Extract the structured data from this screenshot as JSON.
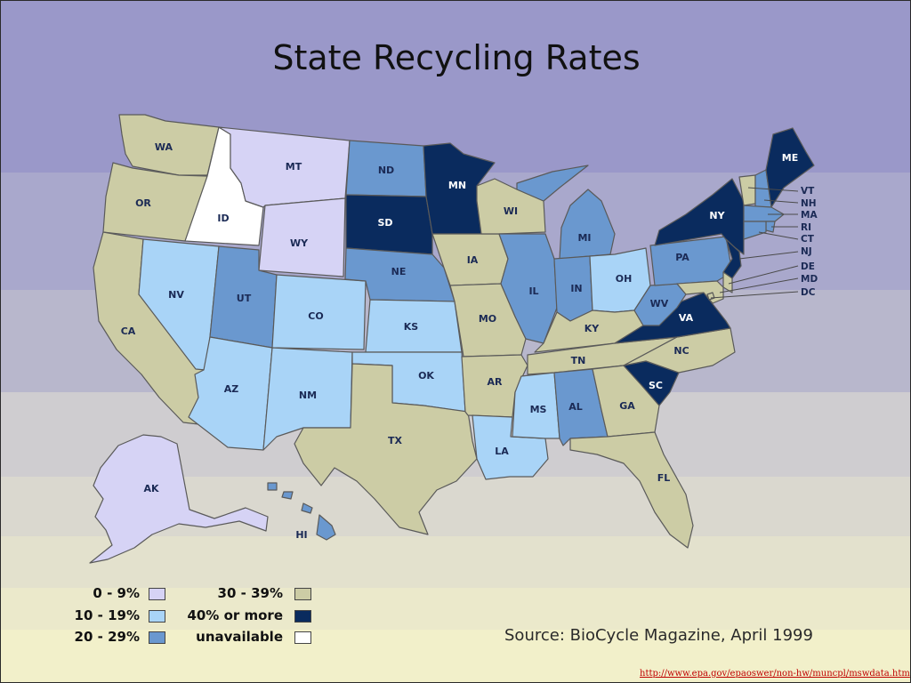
{
  "title": "State Recycling Rates",
  "legend": {
    "items": [
      {
        "label": "0 - 9%",
        "color": "#d6d3f5"
      },
      {
        "label": "10 - 19%",
        "color": "#a9d4f7"
      },
      {
        "label": "20 - 29%",
        "color": "#6a98cf"
      },
      {
        "label": "30 - 39%",
        "color": "#cccca5"
      },
      {
        "label": "40% or more",
        "color": "#0a2b5e"
      },
      {
        "label": "unavailable",
        "color": "#ffffff"
      }
    ]
  },
  "source": "Source: BioCycle Magazine, April 1999",
  "url": "http://www.epa.gov/epaoswer/non-hw/muncpl/mswdata.htm",
  "states": {
    "WA": {
      "label": "WA",
      "category": "30 - 39%"
    },
    "OR": {
      "label": "OR",
      "category": "30 - 39%"
    },
    "CA": {
      "label": "CA",
      "category": "30 - 39%"
    },
    "ID": {
      "label": "ID",
      "category": "unavailable"
    },
    "NV": {
      "label": "NV",
      "category": "10 - 19%"
    },
    "MT": {
      "label": "MT",
      "category": "0 - 9%"
    },
    "WY": {
      "label": "WY",
      "category": "0 - 9%"
    },
    "UT": {
      "label": "UT",
      "category": "20 - 29%"
    },
    "AZ": {
      "label": "AZ",
      "category": "10 - 19%"
    },
    "CO": {
      "label": "CO",
      "category": "10 - 19%"
    },
    "NM": {
      "label": "NM",
      "category": "10 - 19%"
    },
    "ND": {
      "label": "ND",
      "category": "20 - 29%"
    },
    "SD": {
      "label": "SD",
      "category": "40% or more"
    },
    "NE": {
      "label": "NE",
      "category": "20 - 29%"
    },
    "KS": {
      "label": "KS",
      "category": "10 - 19%"
    },
    "OK": {
      "label": "OK",
      "category": "10 - 19%"
    },
    "TX": {
      "label": "TX",
      "category": "30 - 39%"
    },
    "MN": {
      "label": "MN",
      "category": "40% or more"
    },
    "IA": {
      "label": "IA",
      "category": "30 - 39%"
    },
    "MO": {
      "label": "MO",
      "category": "30 - 39%"
    },
    "AR": {
      "label": "AR",
      "category": "30 - 39%"
    },
    "LA": {
      "label": "LA",
      "category": "10 - 19%"
    },
    "WI": {
      "label": "WI",
      "category": "30 - 39%"
    },
    "IL": {
      "label": "IL",
      "category": "20 - 29%"
    },
    "MS": {
      "label": "MS",
      "category": "10 - 19%"
    },
    "MI": {
      "label": "MI",
      "category": "20 - 29%"
    },
    "IN": {
      "label": "IN",
      "category": "20 - 29%"
    },
    "OH": {
      "label": "OH",
      "category": "10 - 19%"
    },
    "KY": {
      "label": "KY",
      "category": "30 - 39%"
    },
    "TN": {
      "label": "TN",
      "category": "30 - 39%"
    },
    "AL": {
      "label": "AL",
      "category": "20 - 29%"
    },
    "GA": {
      "label": "GA",
      "category": "30 - 39%"
    },
    "FL": {
      "label": "FL",
      "category": "30 - 39%"
    },
    "SC": {
      "label": "SC",
      "category": "40% or more"
    },
    "NC": {
      "label": "NC",
      "category": "30 - 39%"
    },
    "VA": {
      "label": "VA",
      "category": "40% or more"
    },
    "WV": {
      "label": "WV",
      "category": "20 - 29%"
    },
    "PA": {
      "label": "PA",
      "category": "20 - 29%"
    },
    "NY": {
      "label": "NY",
      "category": "40% or more"
    },
    "ME": {
      "label": "ME",
      "category": "40% or more"
    },
    "VT": {
      "label": "VT",
      "category": "30 - 39%"
    },
    "NH": {
      "label": "NH",
      "category": "20 - 29%"
    },
    "MA": {
      "label": "MA",
      "category": "20 - 29%"
    },
    "RI": {
      "label": "RI",
      "category": "20 - 29%"
    },
    "CT": {
      "label": "CT",
      "category": "20 - 29%"
    },
    "NJ": {
      "label": "NJ",
      "category": "40% or more"
    },
    "DE": {
      "label": "DE",
      "category": "30 - 39%"
    },
    "MD": {
      "label": "MD",
      "category": "30 - 39%"
    },
    "DC": {
      "label": "DC",
      "category": "30 - 39%"
    },
    "AK": {
      "label": "AK",
      "category": "0 - 9%"
    },
    "HI": {
      "label": "HI",
      "category": "20 - 29%"
    }
  }
}
